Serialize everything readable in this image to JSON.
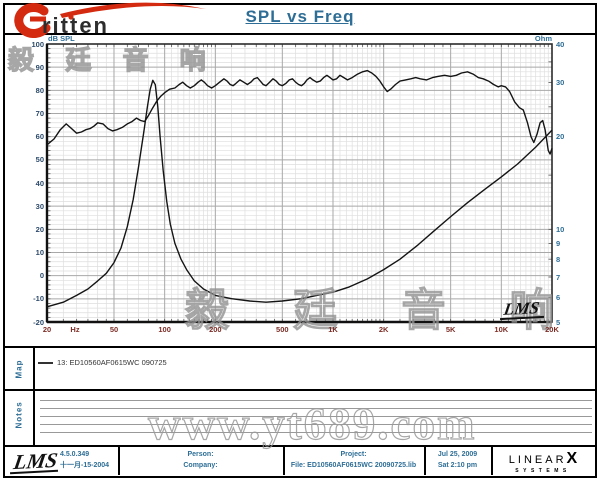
{
  "brand": {
    "logo_e": "e",
    "logo_text": "ritten"
  },
  "title": "SPL vs Freq",
  "watermarks": {
    "cjk": "毅 廷 音 响",
    "site": "www.yt689.com"
  },
  "chart_data": {
    "type": "line",
    "title": "SPL vs Freq",
    "grid": true,
    "x_axis": {
      "scale": "log",
      "min": 20,
      "max": 20000,
      "unit_label": "Hz",
      "ticks": [
        {
          "f": 20,
          "label": "20"
        },
        {
          "f": 50,
          "label": "50"
        },
        {
          "f": 100,
          "label": "100"
        },
        {
          "f": 200,
          "label": "200"
        },
        {
          "f": 500,
          "label": "500"
        },
        {
          "f": 1000,
          "label": "1K"
        },
        {
          "f": 2000,
          "label": "2K"
        },
        {
          "f": 5000,
          "label": "5K"
        },
        {
          "f": 10000,
          "label": "10K"
        },
        {
          "f": 20000,
          "label": "20K"
        }
      ]
    },
    "y_left": {
      "label": "dB SPL",
      "scale": "linear",
      "min": -20,
      "max": 100,
      "ticks": [
        100,
        90,
        80,
        70,
        60,
        50,
        40,
        30,
        20,
        10,
        0,
        -10,
        -20
      ]
    },
    "y_right": {
      "label": "Ohm",
      "scale": "log",
      "min": 5,
      "max": 40,
      "ticks": [
        40,
        30,
        20,
        10,
        9,
        8,
        7,
        6,
        5
      ]
    },
    "legend": "13: ED10560AF0615WC   090725",
    "series": [
      {
        "name": "SPL (dB)",
        "axis": "left",
        "points": [
          [
            20,
            56.5
          ],
          [
            22,
            59
          ],
          [
            24,
            63
          ],
          [
            26,
            65.5
          ],
          [
            28,
            63.5
          ],
          [
            30,
            61.5
          ],
          [
            32,
            62
          ],
          [
            34,
            63
          ],
          [
            36,
            63.5
          ],
          [
            38,
            64.5
          ],
          [
            40,
            66
          ],
          [
            43,
            65.5
          ],
          [
            46,
            63.5
          ],
          [
            49,
            62.5
          ],
          [
            52,
            63
          ],
          [
            56,
            64
          ],
          [
            60,
            65.5
          ],
          [
            64,
            66.5
          ],
          [
            68,
            68
          ],
          [
            72,
            67
          ],
          [
            76,
            66.5
          ],
          [
            80,
            69
          ],
          [
            85,
            72.5
          ],
          [
            90,
            75.5
          ],
          [
            95,
            77.5
          ],
          [
            100,
            79
          ],
          [
            107,
            80.5
          ],
          [
            115,
            81
          ],
          [
            122,
            82.5
          ],
          [
            128,
            83.5
          ],
          [
            135,
            82
          ],
          [
            142,
            81
          ],
          [
            150,
            82
          ],
          [
            158,
            83.5
          ],
          [
            165,
            84.5
          ],
          [
            172,
            83.5
          ],
          [
            180,
            82
          ],
          [
            190,
            81
          ],
          [
            200,
            82
          ],
          [
            212,
            83.5
          ],
          [
            225,
            85
          ],
          [
            235,
            84
          ],
          [
            245,
            82.5
          ],
          [
            255,
            82
          ],
          [
            265,
            83
          ],
          [
            280,
            84.5
          ],
          [
            295,
            83.5
          ],
          [
            310,
            82.5
          ],
          [
            325,
            83.5
          ],
          [
            340,
            85
          ],
          [
            355,
            85.5
          ],
          [
            370,
            84
          ],
          [
            385,
            82.5
          ],
          [
            400,
            82
          ],
          [
            420,
            83.5
          ],
          [
            440,
            85
          ],
          [
            460,
            84
          ],
          [
            480,
            82.5
          ],
          [
            500,
            82
          ],
          [
            525,
            83
          ],
          [
            550,
            84.5
          ],
          [
            575,
            85
          ],
          [
            600,
            83.5
          ],
          [
            625,
            82.5
          ],
          [
            650,
            82
          ],
          [
            675,
            83
          ],
          [
            700,
            84.5
          ],
          [
            730,
            85.5
          ],
          [
            760,
            84.5
          ],
          [
            800,
            83.5
          ],
          [
            840,
            84
          ],
          [
            880,
            85.5
          ],
          [
            920,
            86.5
          ],
          [
            960,
            85.5
          ],
          [
            1000,
            84.5
          ],
          [
            1050,
            85
          ],
          [
            1100,
            86.5
          ],
          [
            1160,
            85.5
          ],
          [
            1220,
            84.5
          ],
          [
            1300,
            85.5
          ],
          [
            1400,
            87
          ],
          [
            1500,
            88
          ],
          [
            1600,
            88.5
          ],
          [
            1700,
            87.5
          ],
          [
            1800,
            86
          ],
          [
            1900,
            84
          ],
          [
            2000,
            81.5
          ],
          [
            2100,
            79.5
          ],
          [
            2200,
            80.5
          ],
          [
            2350,
            82.5
          ],
          [
            2500,
            84
          ],
          [
            2700,
            84.5
          ],
          [
            2900,
            85
          ],
          [
            3100,
            85.5
          ],
          [
            3300,
            85
          ],
          [
            3600,
            84.5
          ],
          [
            3900,
            85.5
          ],
          [
            4200,
            86
          ],
          [
            4600,
            86.5
          ],
          [
            5000,
            86
          ],
          [
            5400,
            86.5
          ],
          [
            5800,
            87.5
          ],
          [
            6300,
            88
          ],
          [
            6800,
            87
          ],
          [
            7300,
            85.5
          ],
          [
            7800,
            85
          ],
          [
            8400,
            84
          ],
          [
            9000,
            82.5
          ],
          [
            9600,
            81.5
          ],
          [
            10000,
            82
          ],
          [
            10600,
            81.5
          ],
          [
            11200,
            79.5
          ],
          [
            12000,
            75
          ],
          [
            12800,
            72.5
          ],
          [
            13500,
            71.5
          ],
          [
            14300,
            66
          ],
          [
            15000,
            60
          ],
          [
            15600,
            57.5
          ],
          [
            16300,
            61
          ],
          [
            17000,
            66
          ],
          [
            17600,
            67
          ],
          [
            18200,
            63
          ],
          [
            19000,
            54
          ],
          [
            19500,
            52.5
          ],
          [
            20000,
            55
          ]
        ]
      },
      {
        "name": "Impedance (Ohm)",
        "axis": "right",
        "points": [
          [
            20,
            5.6
          ],
          [
            25,
            5.8
          ],
          [
            30,
            6.1
          ],
          [
            35,
            6.4
          ],
          [
            40,
            6.8
          ],
          [
            45,
            7.2
          ],
          [
            50,
            7.8
          ],
          [
            55,
            8.7
          ],
          [
            60,
            10.2
          ],
          [
            65,
            12.5
          ],
          [
            70,
            16
          ],
          [
            75,
            20.5
          ],
          [
            79,
            25
          ],
          [
            82,
            28.5
          ],
          [
            85,
            30.5
          ],
          [
            88,
            29.5
          ],
          [
            91,
            25
          ],
          [
            94,
            20
          ],
          [
            98,
            15.5
          ],
          [
            103,
            12.3
          ],
          [
            108,
            10.4
          ],
          [
            115,
            9
          ],
          [
            125,
            8
          ],
          [
            135,
            7.4
          ],
          [
            150,
            6.8
          ],
          [
            170,
            6.4
          ],
          [
            200,
            6.1
          ],
          [
            250,
            5.95
          ],
          [
            320,
            5.85
          ],
          [
            400,
            5.8
          ],
          [
            500,
            5.85
          ],
          [
            650,
            5.95
          ],
          [
            800,
            6.1
          ],
          [
            1000,
            6.25
          ],
          [
            1250,
            6.5
          ],
          [
            1600,
            6.9
          ],
          [
            2000,
            7.4
          ],
          [
            2500,
            8
          ],
          [
            3200,
            8.9
          ],
          [
            4000,
            9.9
          ],
          [
            5000,
            11
          ],
          [
            6300,
            12.2
          ],
          [
            8000,
            13.5
          ],
          [
            10000,
            14.8
          ],
          [
            12500,
            16.3
          ],
          [
            16000,
            18.5
          ],
          [
            20000,
            21
          ]
        ]
      }
    ],
    "colors": {
      "curve": "#141414",
      "grid_minor": "#dedede",
      "grid_major": "#a8a8a8",
      "frame": "#2b2b2b",
      "title": "#2e6e96",
      "x_labels": "#7b2d26",
      "y_left_labels": "#2c4a6b",
      "y_right_labels": "#2e6e96",
      "logo_red": "#d42a10"
    }
  },
  "plot": {
    "lms_logo": "LMS"
  },
  "map_panel": {
    "label": "Map",
    "legend": "13: ED10560AF0615WC   090725"
  },
  "notes_panel": {
    "label": "Notes"
  },
  "footer": {
    "lms_logo": "LMS",
    "version": "4.5.0.349",
    "version_date": "十一月-15-2004",
    "person_label": "Person:",
    "company_label": "Company:",
    "project_label": "Project:",
    "file_label": "File: ED10560AF0615WC   20090725.lib",
    "date": "Jul 25, 2009",
    "time": "Sat 2:10 pm",
    "linearx_part1": "LINEAR",
    "linearx_x": "X",
    "linearx_part2": "SYSTEMS"
  }
}
